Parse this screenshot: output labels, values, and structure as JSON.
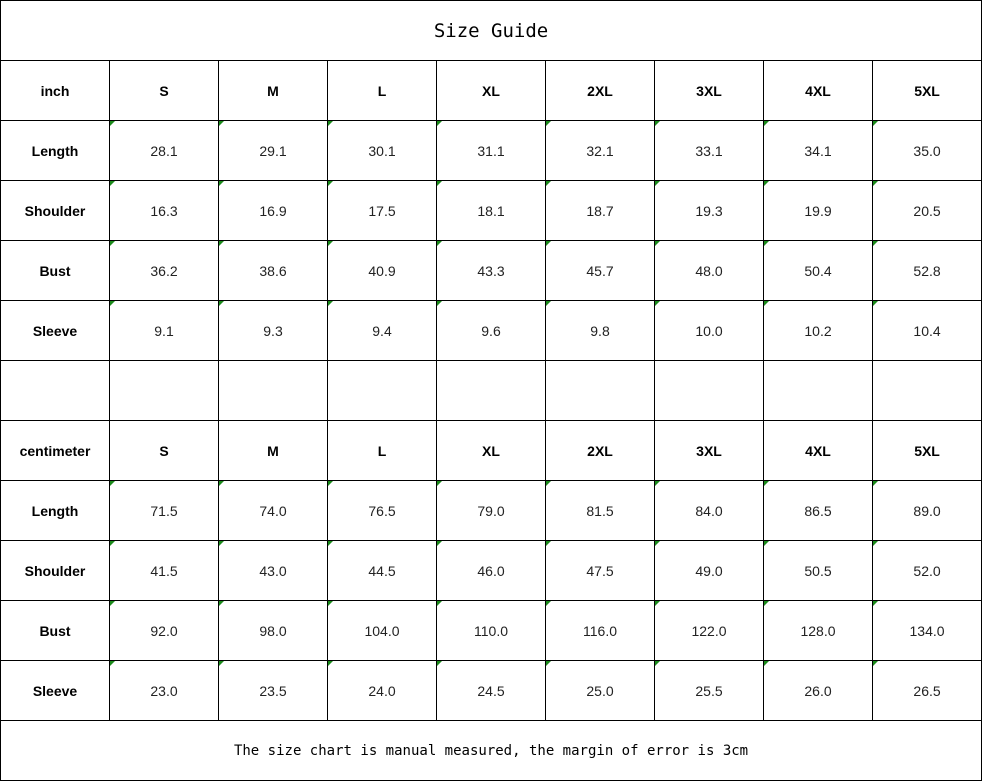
{
  "title": "Size Guide",
  "sizes": [
    "S",
    "M",
    "L",
    "XL",
    "2XL",
    "3XL",
    "4XL",
    "5XL"
  ],
  "sections": [
    {
      "unit": "inch",
      "rows": [
        {
          "label": "Length",
          "values": [
            "28.1",
            "29.1",
            "30.1",
            "31.1",
            "32.1",
            "33.1",
            "34.1",
            "35.0"
          ]
        },
        {
          "label": "Shoulder",
          "values": [
            "16.3",
            "16.9",
            "17.5",
            "18.1",
            "18.7",
            "19.3",
            "19.9",
            "20.5"
          ]
        },
        {
          "label": "Bust",
          "values": [
            "36.2",
            "38.6",
            "40.9",
            "43.3",
            "45.7",
            "48.0",
            "50.4",
            "52.8"
          ]
        },
        {
          "label": "Sleeve",
          "values": [
            "9.1",
            "9.3",
            "9.4",
            "9.6",
            "9.8",
            "10.0",
            "10.2",
            "10.4"
          ]
        }
      ]
    },
    {
      "unit": "centimeter",
      "rows": [
        {
          "label": "Length",
          "values": [
            "71.5",
            "74.0",
            "76.5",
            "79.0",
            "81.5",
            "84.0",
            "86.5",
            "89.0"
          ]
        },
        {
          "label": "Shoulder",
          "values": [
            "41.5",
            "43.0",
            "44.5",
            "46.0",
            "47.5",
            "49.0",
            "50.5",
            "52.0"
          ]
        },
        {
          "label": "Bust",
          "values": [
            "92.0",
            "98.0",
            "104.0",
            "110.0",
            "116.0",
            "122.0",
            "128.0",
            "134.0"
          ]
        },
        {
          "label": "Sleeve",
          "values": [
            "23.0",
            "23.5",
            "24.0",
            "24.5",
            "25.0",
            "25.5",
            "26.0",
            "26.5"
          ]
        }
      ]
    }
  ],
  "note": "The size chart is manual measured, the margin of error is 3cm",
  "colors": {
    "error_indicator": "#1a8a1a",
    "border": "#000000"
  }
}
